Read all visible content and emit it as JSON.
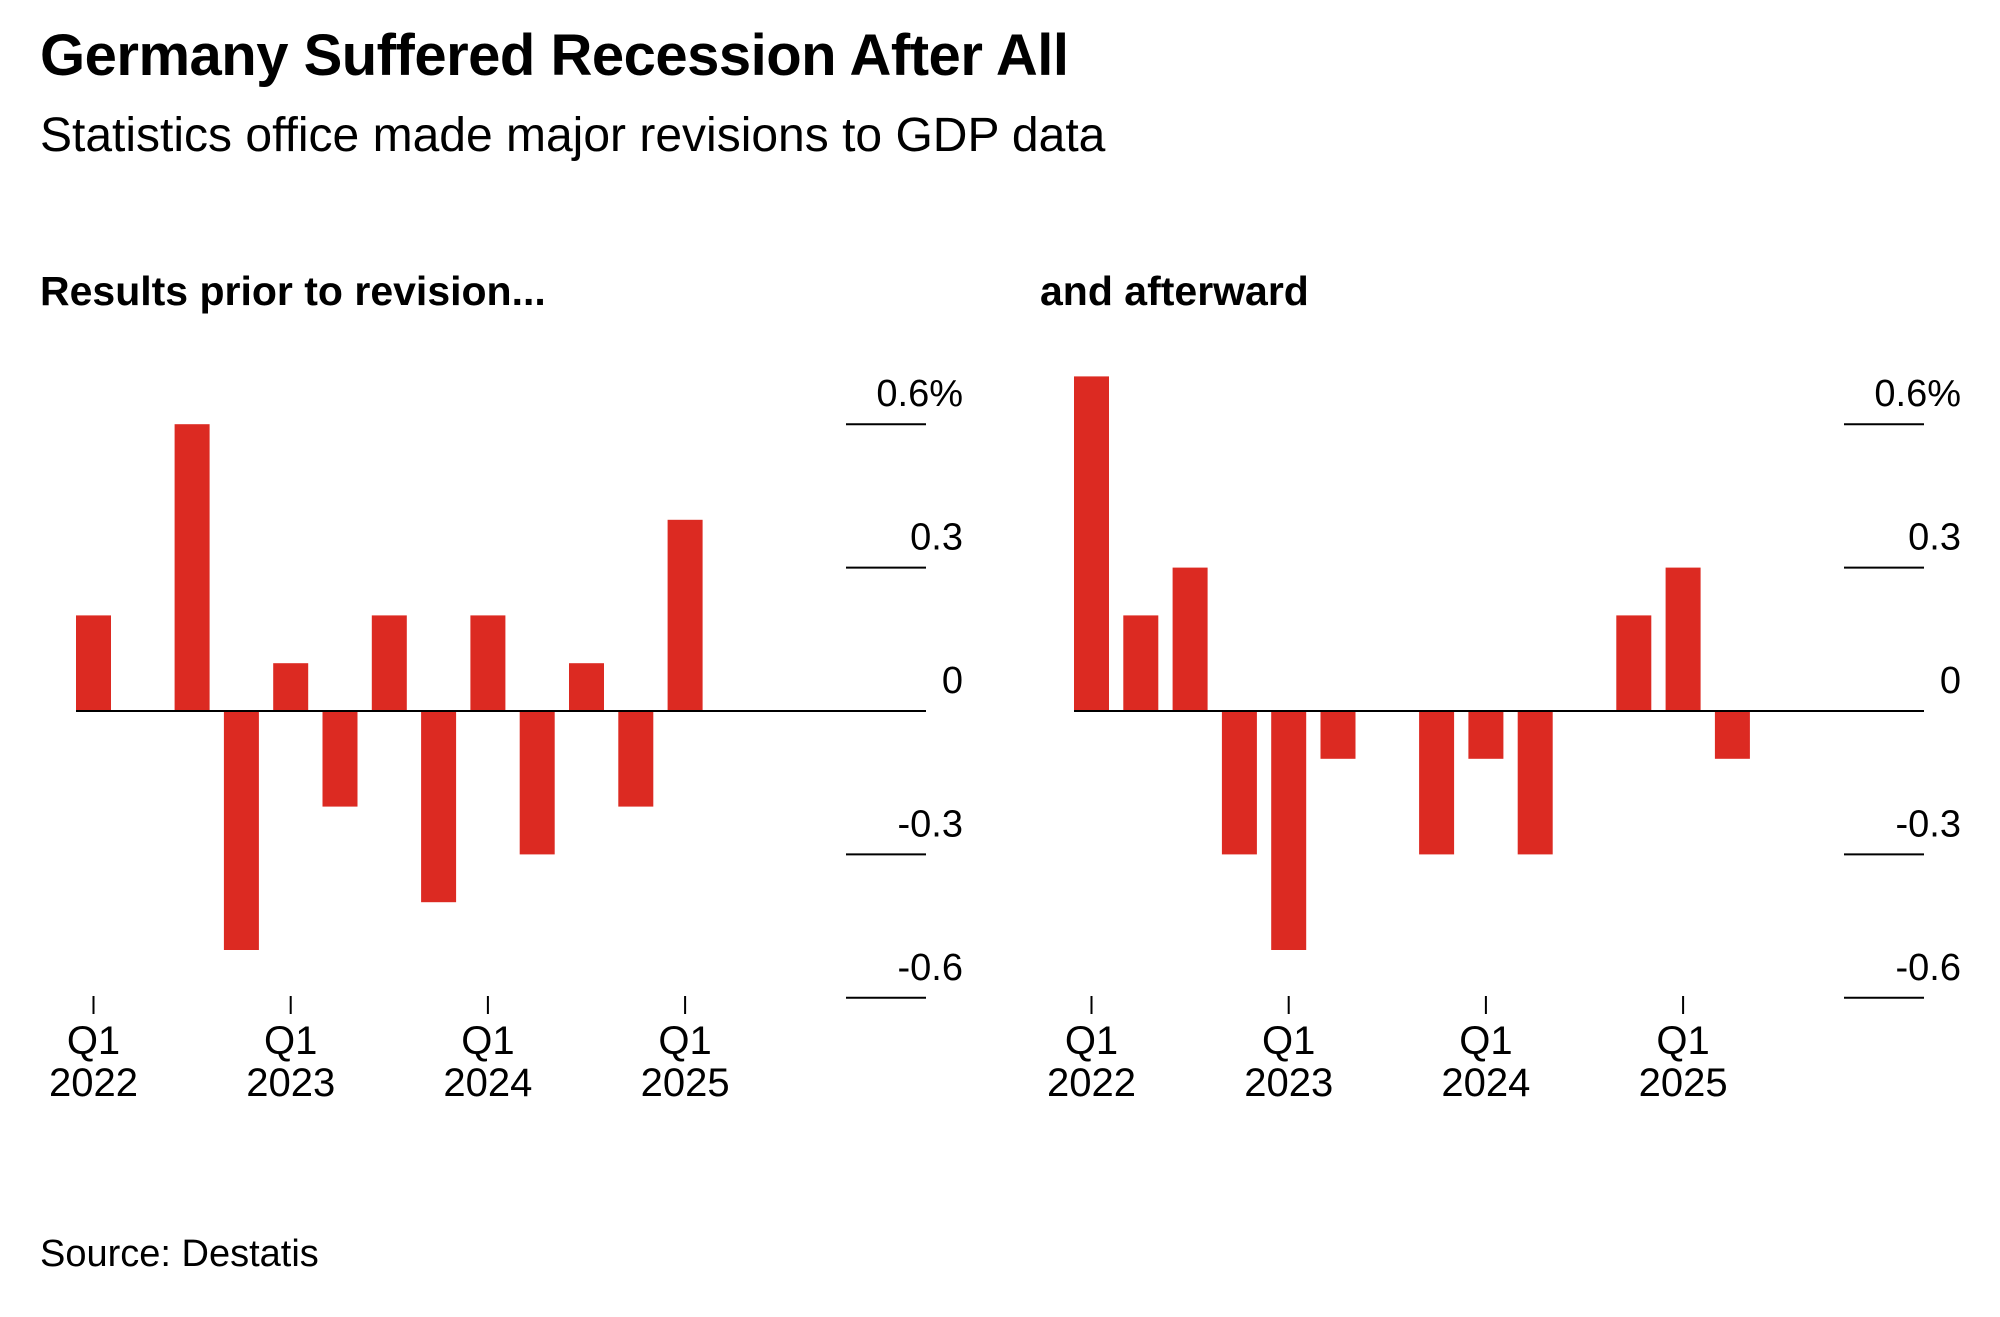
{
  "header": {
    "title": "Germany Suffered Recession After All",
    "subtitle": "Statistics office made major revisions to GDP data"
  },
  "footer": {
    "source": "Source: Destatis"
  },
  "colors": {
    "bar": "#dc2a22",
    "axis": "#000000",
    "text": "#000000"
  },
  "chart_data": [
    {
      "type": "bar",
      "title": "Results prior to revision...",
      "categories": [
        "Q1 2022",
        "Q2 2022",
        "Q3 2022",
        "Q4 2022",
        "Q1 2023",
        "Q2 2023",
        "Q3 2023",
        "Q4 2023",
        "Q1 2024",
        "Q2 2024",
        "Q3 2024",
        "Q4 2024",
        "Q1 2025"
      ],
      "values": [
        0.2,
        0.0,
        0.6,
        -0.5,
        0.1,
        -0.2,
        0.2,
        -0.4,
        0.2,
        -0.3,
        0.1,
        -0.2,
        0.4
      ],
      "ylim": [
        -0.6,
        0.6
      ],
      "yticks": [
        0.6,
        0.3,
        0,
        -0.3,
        -0.6
      ],
      "ytick_labels": [
        "0.6%",
        "0.3",
        "0",
        "-0.3",
        "-0.6"
      ],
      "xtick_labels": [
        {
          "quarter": "Q1",
          "year": "2022",
          "index": 0
        },
        {
          "quarter": "Q1",
          "year": "2023",
          "index": 4
        },
        {
          "quarter": "Q1",
          "year": "2024",
          "index": 8
        },
        {
          "quarter": "Q1",
          "year": "2025",
          "index": 12
        }
      ],
      "grid": "tick stubs at right axis",
      "legend": "none"
    },
    {
      "type": "bar",
      "title": "and afterward",
      "categories": [
        "Q1 2022",
        "Q2 2022",
        "Q3 2022",
        "Q4 2022",
        "Q1 2023",
        "Q2 2023",
        "Q3 2023",
        "Q4 2023",
        "Q1 2024",
        "Q2 2024",
        "Q3 2024",
        "Q4 2024",
        "Q1 2025",
        "Q2 2025"
      ],
      "values": [
        0.7,
        0.2,
        0.3,
        -0.3,
        -0.5,
        -0.1,
        0.0,
        -0.3,
        -0.1,
        -0.3,
        0.0,
        0.2,
        0.3,
        -0.1
      ],
      "ylim": [
        -0.6,
        0.6
      ],
      "yticks": [
        0.6,
        0.3,
        0,
        -0.3,
        -0.6
      ],
      "ytick_labels": [
        "0.6%",
        "0.3",
        "0",
        "-0.3",
        "-0.6"
      ],
      "xtick_labels": [
        {
          "quarter": "Q1",
          "year": "2022",
          "index": 0
        },
        {
          "quarter": "Q1",
          "year": "2023",
          "index": 4
        },
        {
          "quarter": "Q1",
          "year": "2024",
          "index": 8
        },
        {
          "quarter": "Q1",
          "year": "2025",
          "index": 12
        }
      ],
      "grid": "tick stubs at right axis",
      "legend": "none"
    }
  ]
}
